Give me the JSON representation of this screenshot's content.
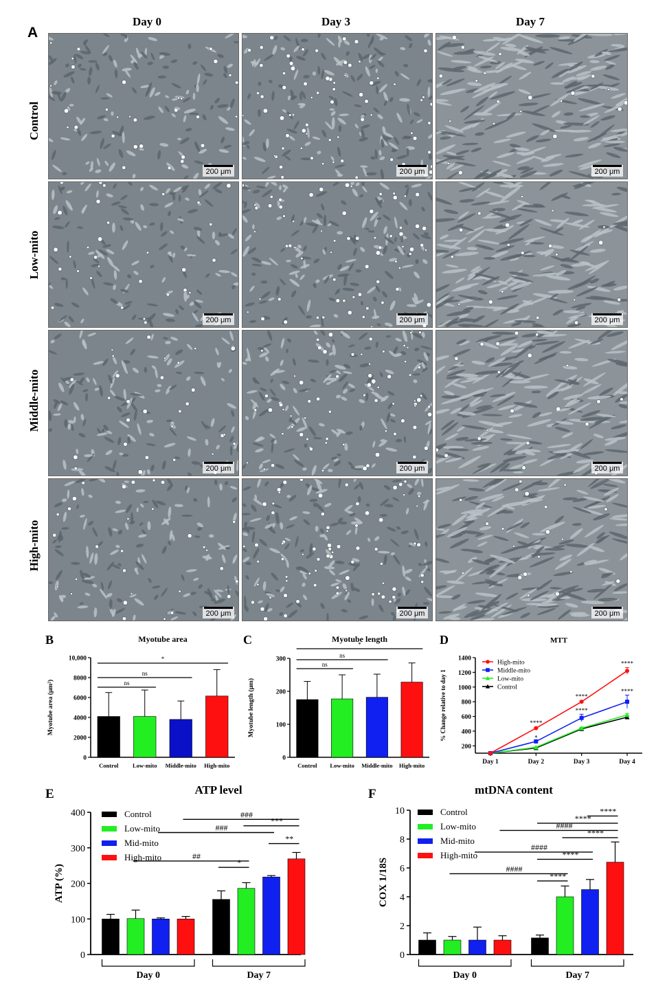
{
  "panel_a": {
    "letter": "A",
    "columns": [
      "Day 0",
      "Day 3",
      "Day 7"
    ],
    "rows": [
      "Control",
      "Low-mito",
      "Middle-mito",
      "High-mito"
    ],
    "scale_label": "200 μm"
  },
  "chart_data": [
    {
      "id": "B",
      "type": "bar",
      "title": "Myotube area",
      "ylabel": "Myotube area (μm²)",
      "ylim": [
        0,
        10000
      ],
      "ytick_labels": [
        "0",
        "2000",
        "4000",
        "6000",
        "8000",
        "10,000"
      ],
      "categories": [
        "Control",
        "Low-mito",
        "Middle-mito",
        "High-mito"
      ],
      "values": [
        4100,
        4100,
        3800,
        6150
      ],
      "errors": [
        2400,
        2650,
        1850,
        2650
      ],
      "colors": [
        "#000000",
        "#22ee22",
        "#0a10c8",
        "#ff1010"
      ],
      "brackets": [
        {
          "from": 0,
          "to": 1,
          "label": "ns"
        },
        {
          "from": 0,
          "to": 2,
          "label": "ns"
        },
        {
          "from": 0,
          "to": 3,
          "label": "*"
        }
      ]
    },
    {
      "id": "C",
      "type": "bar",
      "title": "Myotube length",
      "ylabel": "Myotube length (μm)",
      "ylim": [
        0,
        300
      ],
      "ytick_labels": [
        "0",
        "100",
        "200",
        "300"
      ],
      "categories": [
        "Control",
        "Low-mito",
        "Middle-mito",
        "High-mito"
      ],
      "values": [
        175,
        177,
        182,
        228
      ],
      "errors": [
        55,
        73,
        70,
        58
      ],
      "colors": [
        "#000000",
        "#22ee22",
        "#1020f0",
        "#ff1010"
      ],
      "brackets": [
        {
          "from": 0,
          "to": 1,
          "label": "ns"
        },
        {
          "from": 0,
          "to": 2,
          "label": "ns"
        },
        {
          "from": 0,
          "to": 3,
          "label": "*"
        }
      ]
    },
    {
      "id": "D",
      "type": "line",
      "title": "MTT",
      "ylabel": "% Change relative to day 1",
      "ylim": [
        100,
        1400
      ],
      "ytick_labels": [
        "200",
        "400",
        "600",
        "800",
        "1000",
        "1200",
        "1400"
      ],
      "categories": [
        "Day 1",
        "Day 2",
        "Day 3",
        "Day 4"
      ],
      "series": [
        {
          "name": "High-mito",
          "color": "#ff1010",
          "marker": "circle",
          "values": [
            100,
            440,
            800,
            1220
          ],
          "errors": [
            0,
            10,
            15,
            45
          ]
        },
        {
          "name": "Middle-mito",
          "color": "#1020f0",
          "marker": "square",
          "values": [
            100,
            260,
            580,
            800
          ],
          "errors": [
            0,
            15,
            50,
            90
          ]
        },
        {
          "name": "Low-mito",
          "color": "#22ee22",
          "marker": "triangle",
          "values": [
            100,
            180,
            440,
            620
          ],
          "errors": [
            0,
            8,
            15,
            20
          ]
        },
        {
          "name": "Control",
          "color": "#000000",
          "marker": "triangle",
          "values": [
            100,
            170,
            430,
            590
          ],
          "errors": [
            0,
            8,
            12,
            15
          ]
        }
      ],
      "annotations": [
        {
          "x": 1,
          "y": 510,
          "label": "****"
        },
        {
          "x": 1,
          "y": 310,
          "label": "*"
        },
        {
          "x": 2,
          "y": 870,
          "label": "****"
        },
        {
          "x": 2,
          "y": 680,
          "label": "****"
        },
        {
          "x": 3,
          "y": 1320,
          "label": "****"
        },
        {
          "x": 3,
          "y": 940,
          "label": "****"
        }
      ]
    },
    {
      "id": "E",
      "type": "bar",
      "title": "ATP level",
      "ylabel": "ATP (%)",
      "ylim": [
        0,
        400
      ],
      "ytick_labels": [
        "0",
        "100",
        "200",
        "300",
        "400"
      ],
      "legend": [
        "Control",
        "Low-mito",
        "Mid-mito",
        "High-mito"
      ],
      "groups": [
        "Day 0",
        "Day 7"
      ],
      "values": [
        100,
        101,
        100,
        100,
        155,
        186,
        218,
        269
      ],
      "errors": [
        13,
        24,
        3,
        7,
        24,
        16,
        4,
        18
      ],
      "colors": [
        "#000000",
        "#22ee22",
        "#1020f0",
        "#ff1010",
        "#000000",
        "#22ee22",
        "#1020f0",
        "#ff1010"
      ],
      "brackets": [
        {
          "from": 3,
          "to": 7,
          "y": 380,
          "label": "###"
        },
        {
          "from": 5,
          "to": 7,
          "y": 362,
          "label": "***"
        },
        {
          "from": 2,
          "to": 6,
          "y": 343,
          "label": "###"
        },
        {
          "from": 6,
          "to": 7,
          "y": 312,
          "label": "**"
        },
        {
          "from": 1,
          "to": 5,
          "y": 263,
          "label": "##"
        },
        {
          "from": 4,
          "to": 5,
          "y": 245,
          "label": "*"
        }
      ]
    },
    {
      "id": "F",
      "type": "bar",
      "title": "mtDNA content",
      "ylabel": "COX 1/18S",
      "ylim": [
        0,
        10
      ],
      "ytick_labels": [
        "0",
        "2",
        "4",
        "6",
        "8",
        "10"
      ],
      "legend": [
        "Control",
        "Low-mito",
        "Mid-mito",
        "High-mito"
      ],
      "groups": [
        "Day 0",
        "Day 7"
      ],
      "values": [
        1.0,
        1.0,
        1.0,
        1.0,
        1.15,
        4.0,
        4.5,
        6.4
      ],
      "errors": [
        0.5,
        0.25,
        0.9,
        0.3,
        0.2,
        0.75,
        0.7,
        1.4
      ],
      "colors": [
        "#000000",
        "#22ee22",
        "#1020f0",
        "#ff1010",
        "#000000",
        "#22ee22",
        "#1020f0",
        "#ff1010"
      ],
      "brackets": [
        {
          "from": 6,
          "to": 7,
          "y": 9.6,
          "label": "****"
        },
        {
          "from": 4,
          "to": 7,
          "y": 9.1,
          "label": "****"
        },
        {
          "from": 3,
          "to": 7,
          "y": 8.6,
          "label": "####"
        },
        {
          "from": 5,
          "to": 7,
          "y": 8.1,
          "label": "****"
        },
        {
          "from": 2,
          "to": 6,
          "y": 7.1,
          "label": "####"
        },
        {
          "from": 4,
          "to": 6,
          "y": 6.6,
          "label": "****"
        },
        {
          "from": 1,
          "to": 5,
          "y": 5.6,
          "label": "####"
        },
        {
          "from": 4,
          "to": 5,
          "y": 5.1,
          "label": "****"
        }
      ]
    }
  ]
}
